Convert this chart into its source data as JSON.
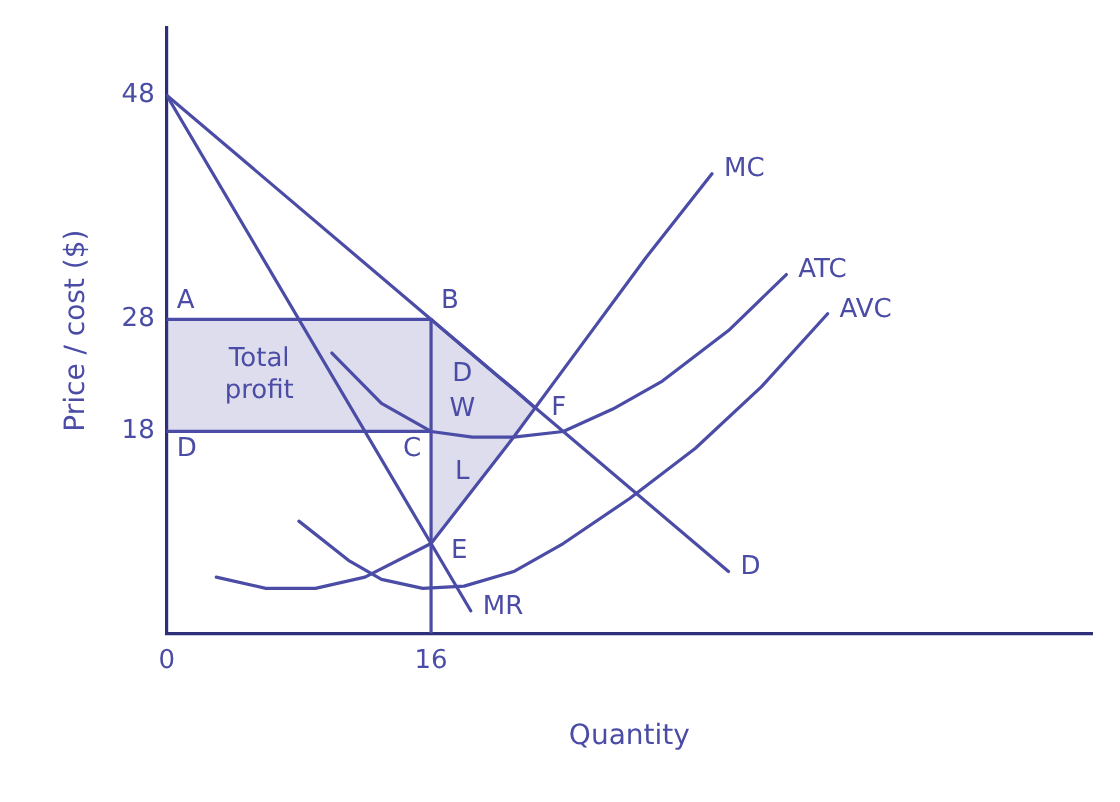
{
  "chart_data": {
    "type": "line",
    "xlabel": "Quantity",
    "ylabel": "Price / cost ($)",
    "xlim": [
      0,
      56
    ],
    "ylim": [
      0,
      54
    ],
    "xticks": [
      0,
      16
    ],
    "yticks": [
      18,
      28,
      48
    ],
    "grid": false,
    "legend": false,
    "series": [
      {
        "name": "D",
        "color": "#4b4ca6",
        "x": [
          0,
          34
        ],
        "values": [
          48,
          5.5
        ]
      },
      {
        "name": "MR",
        "color": "#4b4ca6",
        "x": [
          0,
          18.4
        ],
        "values": [
          48,
          2
        ]
      },
      {
        "name": "MC",
        "color": "#4b4ca6",
        "x": [
          3,
          6,
          9,
          12,
          16,
          21,
          25,
          29,
          33
        ],
        "values": [
          5,
          4,
          4,
          5,
          8,
          17.5,
          25.5,
          33.5,
          41
        ]
      },
      {
        "name": "ATC",
        "color": "#4b4ca6",
        "x": [
          10,
          13,
          16,
          18.5,
          21,
          24,
          27,
          30,
          34,
          37.5
        ],
        "values": [
          25,
          20.5,
          18,
          17.5,
          17.5,
          18,
          20,
          22.5,
          27,
          32
        ]
      },
      {
        "name": "AVC",
        "color": "#4b4ca6",
        "x": [
          8,
          11,
          13,
          15.5,
          18,
          21,
          24,
          28,
          32,
          36,
          40
        ],
        "values": [
          10,
          6.5,
          4.8,
          4,
          4.2,
          5.5,
          8,
          12,
          16.5,
          22,
          28.5
        ]
      },
      {
        "color": "#4b4ca6",
        "x": [
          16,
          16
        ],
        "values": [
          0,
          28
        ]
      },
      {
        "color": "#4b4ca6",
        "x": [
          0,
          16
        ],
        "values": [
          18,
          18
        ]
      },
      {
        "color": "#4b4ca6",
        "x": [
          0,
          16
        ],
        "values": [
          28,
          28
        ],
        "lower": [
          18,
          18
        ],
        "upper": [
          28,
          28
        ]
      },
      {
        "color": "#4b4ca6",
        "x": [
          16,
          18,
          20,
          21,
          22.3
        ],
        "values": [
          28,
          25.5,
          23,
          21.8,
          20.1
        ],
        "lower": [
          8,
          11.8,
          15.6,
          17.5,
          20.1
        ],
        "upper": [
          28,
          25.5,
          23,
          21.8,
          20.1
        ]
      }
    ],
    "annotations": [
      {
        "text": "A",
        "x": 0,
        "y": 28
      },
      {
        "text": "B",
        "x": 16,
        "y": 28
      },
      {
        "text": "D",
        "x": 0,
        "y": 18
      },
      {
        "text": "C",
        "x": 16,
        "y": 18
      },
      {
        "text": "E",
        "x": 16,
        "y": 8
      },
      {
        "text": "F",
        "x": 22.3,
        "y": 20.1
      },
      "Total profit",
      "D",
      "W",
      "L"
    ]
  }
}
